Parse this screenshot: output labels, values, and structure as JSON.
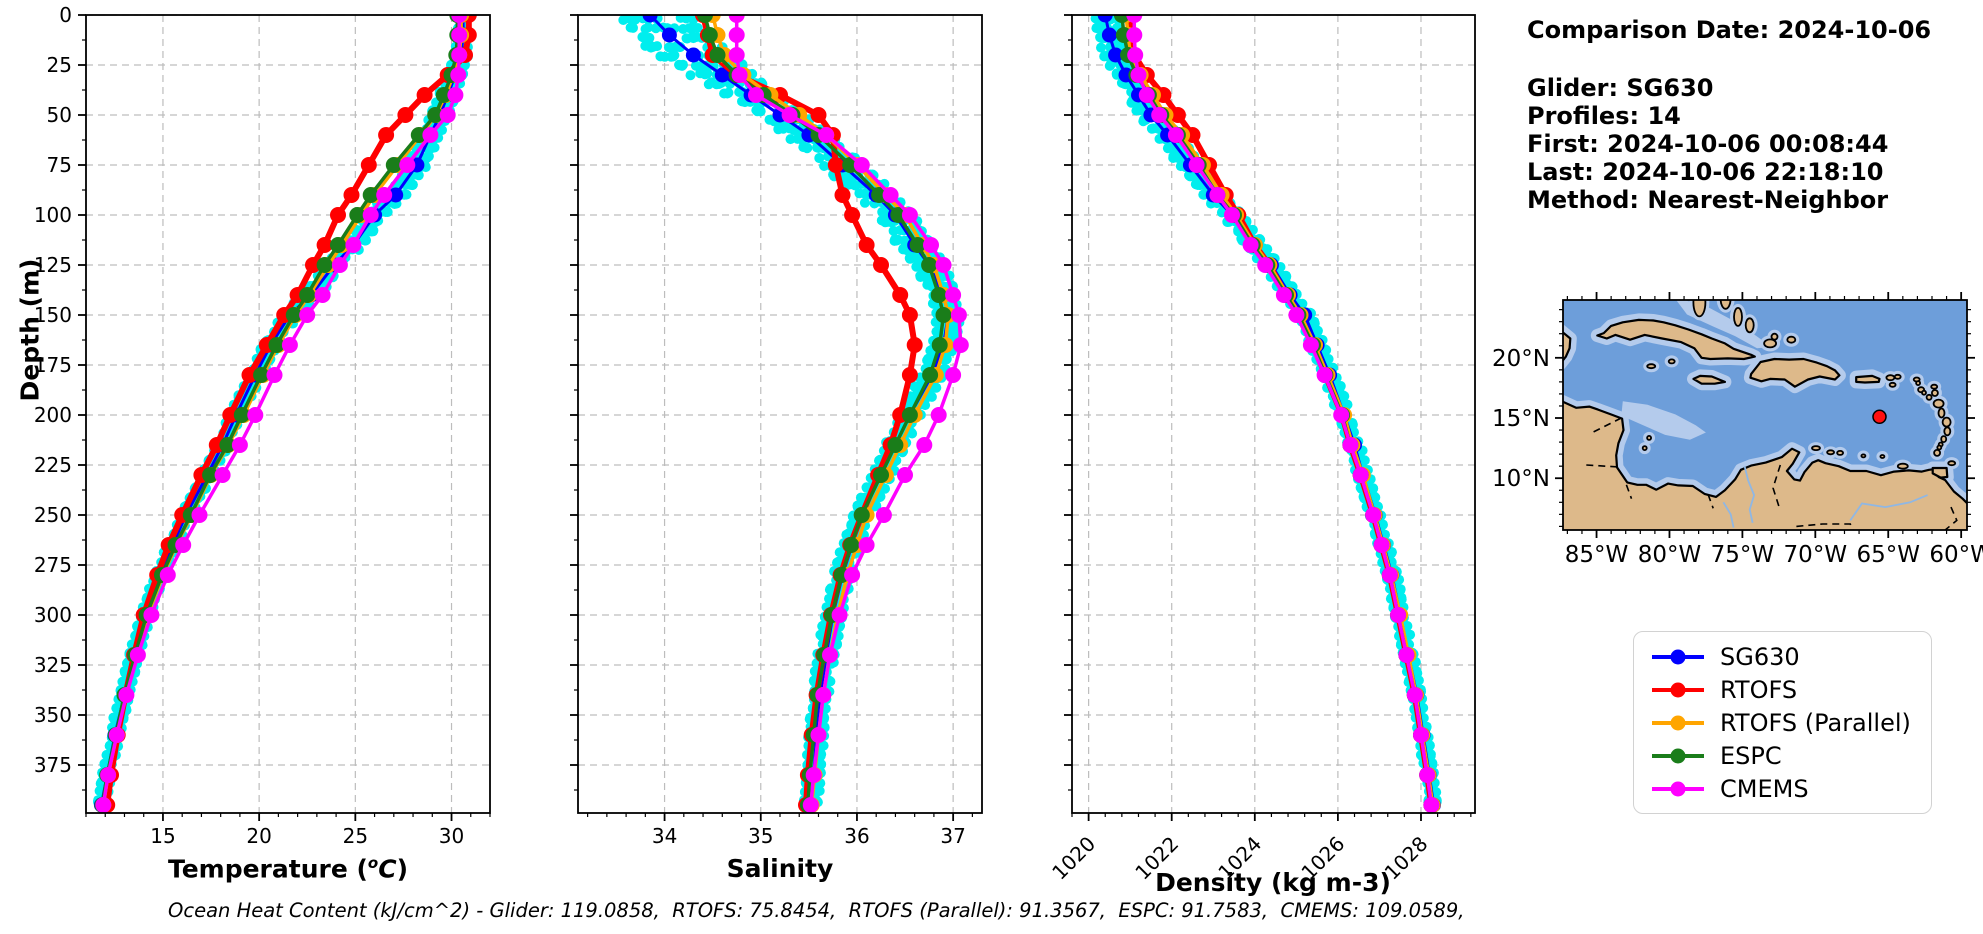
{
  "info_panel": {
    "comparison_date": "Comparison Date: 2024-10-06",
    "glider": "Glider: SG630",
    "profiles": "Profiles: 14",
    "first": "First: 2024-10-06 00:08:44",
    "last": "Last: 2024-10-06 22:18:10",
    "method": "Method: Nearest-Neighbor"
  },
  "footer": "Ocean Heat Content (kJ/cm^2) - Glider: 119.0858,  RTOFS: 75.8454,  RTOFS (Parallel): 91.3567,  ESPC: 91.7583,  CMEMS: 109.0589,",
  "axes": {
    "depth_label": "Depth (m)",
    "temperature": {
      "prefix": "Temperature (",
      "sup": "o",
      "var": "C",
      "suffix": ")"
    },
    "salinity_label": "Salinity",
    "density_label": "Density (kg m-3)"
  },
  "legend": {
    "entries": [
      {
        "label": "SG630",
        "color": "#0000ff"
      },
      {
        "label": "RTOFS",
        "color": "#ff0000"
      },
      {
        "label": "RTOFS (Parallel)",
        "color": "#ffa500"
      },
      {
        "label": "ESPC",
        "color": "#1a7d1a"
      },
      {
        "label": "CMEMS",
        "color": "#ff00ff"
      }
    ]
  },
  "map": {
    "colors": {
      "ocean": "#6d9eda",
      "shallow": "#b4cbec",
      "land": "#ddb98a",
      "coast": "#000000",
      "river": "#8fb7e4"
    },
    "lon_ticks": [
      {
        "label": "85°W",
        "value": -85
      },
      {
        "label": "80°W",
        "value": -80
      },
      {
        "label": "75°W",
        "value": -75
      },
      {
        "label": "70°W",
        "value": -70
      },
      {
        "label": "65°W",
        "value": -65
      },
      {
        "label": "60°W",
        "value": -60
      }
    ],
    "lat_ticks": [
      {
        "label": "20°N",
        "value": 20
      },
      {
        "label": "15°N",
        "value": 15
      },
      {
        "label": "10°N",
        "value": 10
      }
    ],
    "extent": {
      "lon_min": -87.3,
      "lon_max": -59.6,
      "lat_min": 5.7,
      "lat_max": 24.8
    },
    "marker": {
      "lon": -65.6,
      "lat": 15.1,
      "color": "#ff1010"
    }
  },
  "chart_data": [
    {
      "type": "line",
      "xlabel": "Temperature (°C)",
      "ylabel": "Depth (m)",
      "xlim": [
        11.0,
        32.0
      ],
      "ylim": [
        0,
        399
      ],
      "xticks": [
        15,
        20,
        25,
        30
      ],
      "yticks": [
        0,
        25,
        50,
        75,
        100,
        125,
        150,
        175,
        200,
        225,
        250,
        275,
        300,
        325,
        350,
        375
      ],
      "rotate_xticks": false,
      "depths": [
        0,
        10,
        20,
        30,
        40,
        50,
        60,
        75,
        90,
        100,
        115,
        125,
        140,
        150,
        165,
        180,
        200,
        215,
        230,
        250,
        265,
        280,
        300,
        320,
        340,
        360,
        380,
        395
      ],
      "scatter": {
        "name": "Glider raw",
        "color": "#00eeee",
        "amp": [
          [
            0,
            0.28
          ],
          [
            40,
            0.5
          ],
          [
            90,
            0.55
          ],
          [
            150,
            0.42
          ],
          [
            250,
            0.3
          ],
          [
            395,
            0.28
          ]
        ]
      },
      "series": [
        {
          "name": "SG630",
          "color": "#0000ff",
          "lw": 3,
          "r": 7.5,
          "values": [
            30.6,
            30.6,
            30.5,
            30.2,
            29.8,
            29.4,
            28.9,
            28.2,
            27.1,
            26.0,
            24.9,
            23.9,
            22.7,
            21.6,
            20.6,
            19.8,
            18.8,
            18.1,
            17.3,
            16.2,
            15.5,
            14.8,
            14.1,
            13.5,
            13.0,
            12.5,
            12.1,
            11.8
          ]
        },
        {
          "name": "RTOFS",
          "color": "#ff0000",
          "lw": 6,
          "r": 8,
          "values": [
            30.9,
            30.9,
            30.7,
            29.8,
            28.6,
            27.6,
            26.6,
            25.7,
            24.8,
            24.1,
            23.4,
            22.8,
            22.0,
            21.3,
            20.4,
            19.5,
            18.5,
            17.8,
            17.0,
            16.0,
            15.3,
            14.7,
            14.0,
            13.5,
            13.05,
            12.65,
            12.3,
            12.1
          ]
        },
        {
          "name": "RTOFS (Parallel)",
          "color": "#ffa500",
          "lw": 3.5,
          "r": 8,
          "values": [
            30.5,
            30.5,
            30.4,
            30.1,
            29.7,
            29.2,
            28.4,
            27.2,
            26.0,
            25.3,
            24.3,
            23.6,
            22.6,
            21.9,
            21.0,
            20.2,
            19.2,
            18.4,
            17.5,
            16.5,
            15.7,
            15.0,
            14.2,
            13.6,
            13.05,
            12.6,
            12.15,
            11.9
          ]
        },
        {
          "name": "ESPC",
          "color": "#1a7d1a",
          "lw": 3.5,
          "r": 8,
          "values": [
            30.3,
            30.3,
            30.25,
            30.0,
            29.6,
            29.15,
            28.3,
            27.0,
            25.8,
            25.1,
            24.1,
            23.4,
            22.5,
            21.8,
            20.9,
            20.1,
            19.1,
            18.35,
            17.45,
            16.45,
            15.65,
            14.95,
            14.15,
            13.55,
            13.0,
            12.55,
            12.1,
            11.85
          ]
        },
        {
          "name": "CMEMS",
          "color": "#ff00ff",
          "lw": 3.5,
          "r": 8,
          "values": [
            30.4,
            30.4,
            30.4,
            30.35,
            30.2,
            29.8,
            28.9,
            27.7,
            26.5,
            25.8,
            24.9,
            24.2,
            23.3,
            22.5,
            21.6,
            20.8,
            19.8,
            19.0,
            18.1,
            16.9,
            16.05,
            15.25,
            14.4,
            13.7,
            13.1,
            12.6,
            12.15,
            11.9
          ]
        }
      ]
    },
    {
      "type": "line",
      "xlabel": "Salinity",
      "ylabel": "Depth (m)",
      "xlim": [
        33.1,
        37.3
      ],
      "ylim": [
        0,
        399
      ],
      "xticks": [
        34,
        35,
        36,
        37
      ],
      "yticks": [
        0,
        25,
        50,
        75,
        100,
        125,
        150,
        175,
        200,
        225,
        250,
        275,
        300,
        325,
        350,
        375
      ],
      "rotate_xticks": false,
      "depths": [
        0,
        10,
        20,
        30,
        40,
        50,
        60,
        75,
        90,
        100,
        115,
        125,
        140,
        150,
        165,
        180,
        200,
        215,
        230,
        250,
        265,
        280,
        300,
        320,
        340,
        360,
        380,
        395
      ],
      "scatter": {
        "name": "Glider raw",
        "color": "#00eeee",
        "amp": [
          [
            0,
            0.5
          ],
          [
            20,
            0.4
          ],
          [
            40,
            0.25
          ],
          [
            80,
            0.22
          ],
          [
            150,
            0.13
          ],
          [
            395,
            0.08
          ]
        ]
      },
      "series": [
        {
          "name": "SG630",
          "color": "#0000ff",
          "lw": 3,
          "r": 7.5,
          "values": [
            33.85,
            34.05,
            34.3,
            34.6,
            34.9,
            35.2,
            35.5,
            35.85,
            36.2,
            36.4,
            36.6,
            36.75,
            36.9,
            36.95,
            36.9,
            36.78,
            36.55,
            36.4,
            36.25,
            36.05,
            35.95,
            35.85,
            35.75,
            35.68,
            35.62,
            35.58,
            35.55,
            35.52
          ]
        },
        {
          "name": "RTOFS",
          "color": "#ff0000",
          "lw": 6,
          "r": 8,
          "values": [
            34.4,
            34.45,
            34.5,
            34.75,
            35.2,
            35.6,
            35.75,
            35.78,
            35.85,
            35.95,
            36.1,
            36.25,
            36.45,
            36.55,
            36.6,
            36.55,
            36.45,
            36.35,
            36.22,
            36.05,
            35.93,
            35.83,
            35.73,
            35.65,
            35.58,
            35.53,
            35.49,
            35.47
          ]
        },
        {
          "name": "RTOFS (Parallel)",
          "color": "#ffa500",
          "lw": 3.5,
          "r": 8,
          "values": [
            34.5,
            34.55,
            34.62,
            34.82,
            35.1,
            35.4,
            35.68,
            36.0,
            36.3,
            36.5,
            36.68,
            36.8,
            36.9,
            36.95,
            36.92,
            36.82,
            36.6,
            36.45,
            36.3,
            36.1,
            36.0,
            35.9,
            35.8,
            35.72,
            35.65,
            35.6,
            35.56,
            35.53
          ]
        },
        {
          "name": "ESPC",
          "color": "#1a7d1a",
          "lw": 3.5,
          "r": 8,
          "values": [
            34.42,
            34.47,
            34.55,
            34.75,
            35.03,
            35.33,
            35.6,
            35.93,
            36.23,
            36.43,
            36.63,
            36.75,
            36.85,
            36.9,
            36.86,
            36.76,
            36.55,
            36.4,
            36.25,
            36.05,
            35.94,
            35.84,
            35.74,
            35.66,
            35.59,
            35.55,
            35.51,
            35.49
          ]
        },
        {
          "name": "CMEMS",
          "color": "#ff00ff",
          "lw": 3.5,
          "r": 8,
          "values": [
            34.75,
            34.75,
            34.75,
            34.78,
            34.95,
            35.3,
            35.68,
            36.05,
            36.35,
            36.55,
            36.77,
            36.9,
            37.0,
            37.06,
            37.08,
            37.0,
            36.85,
            36.7,
            36.5,
            36.28,
            36.1,
            35.95,
            35.82,
            35.72,
            35.65,
            35.6,
            35.55,
            35.52
          ]
        }
      ]
    },
    {
      "type": "line",
      "xlabel": "Density (kg m-3)",
      "ylabel": "Depth (m)",
      "xlim": [
        1019.6,
        1029.3
      ],
      "ylim": [
        0,
        399
      ],
      "xticks": [
        1020,
        1022,
        1024,
        1026,
        1028
      ],
      "yticks": [
        0,
        25,
        50,
        75,
        100,
        125,
        150,
        175,
        200,
        225,
        250,
        275,
        300,
        325,
        350,
        375
      ],
      "rotate_xticks": true,
      "depths": [
        0,
        10,
        20,
        30,
        40,
        50,
        60,
        75,
        90,
        100,
        115,
        125,
        140,
        150,
        165,
        180,
        200,
        215,
        230,
        250,
        265,
        280,
        300,
        320,
        340,
        360,
        380,
        395
      ],
      "scatter": {
        "name": "Glider raw",
        "color": "#00eeee",
        "amp": [
          [
            0,
            0.3
          ],
          [
            60,
            0.3
          ],
          [
            150,
            0.18
          ],
          [
            395,
            0.12
          ]
        ]
      },
      "series": [
        {
          "name": "SG630",
          "color": "#0000ff",
          "lw": 3,
          "r": 7.5,
          "values": [
            1020.4,
            1020.5,
            1020.65,
            1020.9,
            1021.2,
            1021.5,
            1021.9,
            1022.45,
            1023.0,
            1023.45,
            1024.0,
            1024.4,
            1024.85,
            1025.2,
            1025.5,
            1025.8,
            1026.15,
            1026.4,
            1026.6,
            1026.9,
            1027.1,
            1027.3,
            1027.5,
            1027.7,
            1027.9,
            1028.05,
            1028.2,
            1028.3
          ]
        },
        {
          "name": "RTOFS",
          "color": "#ff0000",
          "lw": 6,
          "r": 8,
          "values": [
            1021.0,
            1021.0,
            1021.1,
            1021.4,
            1021.8,
            1022.15,
            1022.5,
            1022.9,
            1023.3,
            1023.6,
            1024.0,
            1024.35,
            1024.75,
            1025.05,
            1025.4,
            1025.7,
            1026.1,
            1026.3,
            1026.55,
            1026.85,
            1027.05,
            1027.25,
            1027.45,
            1027.65,
            1027.85,
            1028.0,
            1028.15,
            1028.25
          ]
        },
        {
          "name": "RTOFS (Parallel)",
          "color": "#ffa500",
          "lw": 3.5,
          "r": 8,
          "values": [
            1020.9,
            1020.95,
            1021.0,
            1021.25,
            1021.55,
            1021.85,
            1022.25,
            1022.75,
            1023.2,
            1023.55,
            1024.0,
            1024.35,
            1024.8,
            1025.1,
            1025.45,
            1025.75,
            1026.15,
            1026.35,
            1026.6,
            1026.88,
            1027.08,
            1027.28,
            1027.5,
            1027.7,
            1027.88,
            1028.03,
            1028.18,
            1028.28
          ]
        },
        {
          "name": "ESPC",
          "color": "#1a7d1a",
          "lw": 3.5,
          "r": 8,
          "values": [
            1020.8,
            1020.85,
            1020.95,
            1021.15,
            1021.45,
            1021.75,
            1022.15,
            1022.65,
            1023.1,
            1023.5,
            1023.95,
            1024.3,
            1024.75,
            1025.05,
            1025.4,
            1025.7,
            1026.1,
            1026.3,
            1026.55,
            1026.85,
            1027.05,
            1027.25,
            1027.45,
            1027.65,
            1027.85,
            1028.0,
            1028.15,
            1028.25
          ]
        },
        {
          "name": "CMEMS",
          "color": "#ff00ff",
          "lw": 3.5,
          "r": 8,
          "values": [
            1021.1,
            1021.1,
            1021.12,
            1021.2,
            1021.4,
            1021.7,
            1022.1,
            1022.6,
            1023.1,
            1023.45,
            1023.9,
            1024.25,
            1024.7,
            1025.0,
            1025.35,
            1025.68,
            1026.08,
            1026.3,
            1026.55,
            1026.85,
            1027.05,
            1027.25,
            1027.45,
            1027.65,
            1027.85,
            1028.0,
            1028.15,
            1028.25
          ]
        }
      ]
    }
  ]
}
